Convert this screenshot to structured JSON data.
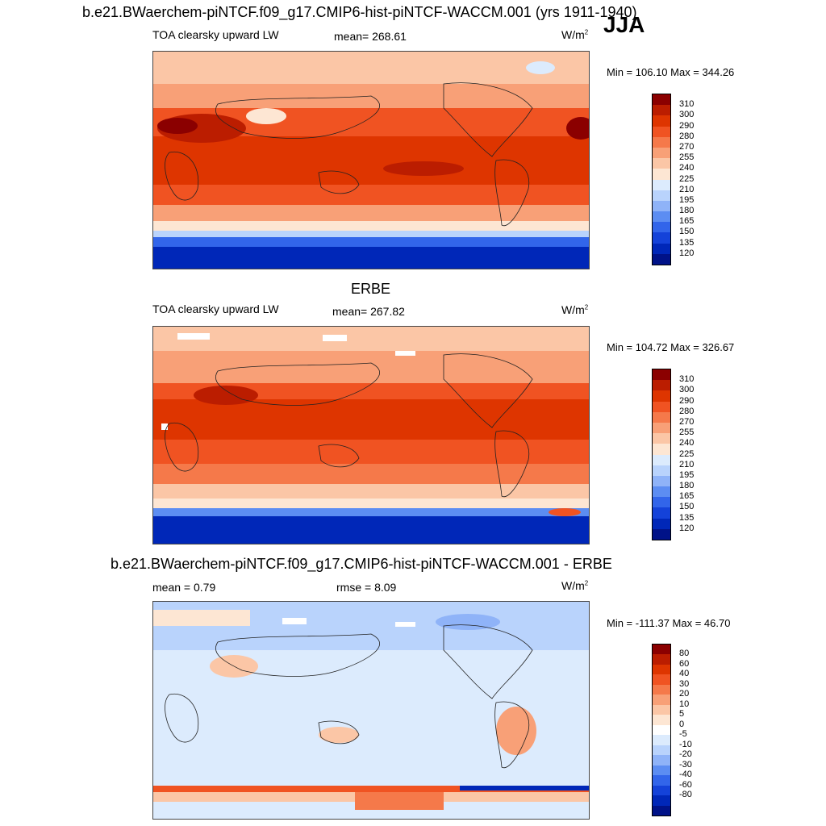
{
  "header": {
    "title": "b.e21.BWaerchem-piNTCF.f09_g17.CMIP6-hist-piNTCF-WACCM.001 (yrs 1911-1940)",
    "season": "JJA"
  },
  "panels": [
    {
      "title": "",
      "variable": "TOA clearsky upward LW",
      "stat": "mean= 268.61",
      "units_base": "W/m",
      "units_exp": "2",
      "minmax": "Min = 106.10 Max = 344.26",
      "colorbar": {
        "colors": [
          "#8b0000",
          "#bb1d00",
          "#de3500",
          "#f05322",
          "#f5794a",
          "#f8a077",
          "#fbc6a6",
          "#fde6d3",
          "#dcebfd",
          "#b9d3fc",
          "#8fb3f8",
          "#5c8df2",
          "#3265ea",
          "#1442d9",
          "#0027b8",
          "#001288"
        ],
        "labels": [
          "310",
          "300",
          "290",
          "280",
          "270",
          "255",
          "240",
          "225",
          "210",
          "195",
          "180",
          "165",
          "150",
          "135",
          "120"
        ]
      }
    },
    {
      "title": "ERBE",
      "variable": "TOA clearsky upward LW",
      "stat": "mean= 267.82",
      "units_base": "W/m",
      "units_exp": "2",
      "minmax": "Min = 104.72 Max = 326.67",
      "colorbar": {
        "colors": [
          "#8b0000",
          "#bb1d00",
          "#de3500",
          "#f05322",
          "#f5794a",
          "#f8a077",
          "#fbc6a6",
          "#fde6d3",
          "#dcebfd",
          "#b9d3fc",
          "#8fb3f8",
          "#5c8df2",
          "#3265ea",
          "#1442d9",
          "#0027b8",
          "#001288"
        ],
        "labels": [
          "310",
          "300",
          "290",
          "280",
          "270",
          "255",
          "240",
          "225",
          "210",
          "195",
          "180",
          "165",
          "150",
          "135",
          "120"
        ]
      }
    },
    {
      "title": "b.e21.BWaerchem-piNTCF.f09_g17.CMIP6-hist-piNTCF-WACCM.001 - ERBE",
      "stat_left": "mean =   0.79",
      "stat": "rmse =   8.09",
      "units_base": "W/m",
      "units_exp": "2",
      "minmax": "Min = -111.37 Max =  46.70",
      "colorbar": {
        "colors": [
          "#8b0000",
          "#bb1d00",
          "#de3500",
          "#f05322",
          "#f5794a",
          "#f8a077",
          "#fbc6a6",
          "#fde6d3",
          "#ffffff",
          "#dcebfd",
          "#b9d3fc",
          "#8fb3f8",
          "#5c8df2",
          "#3265ea",
          "#1442d9",
          "#0027b8",
          "#001288"
        ],
        "labels": [
          "80",
          "60",
          "40",
          "30",
          "20",
          "10",
          "5",
          "0",
          "-5",
          "-10",
          "-20",
          "-30",
          "-40",
          "-60",
          "-80"
        ]
      }
    }
  ]
}
